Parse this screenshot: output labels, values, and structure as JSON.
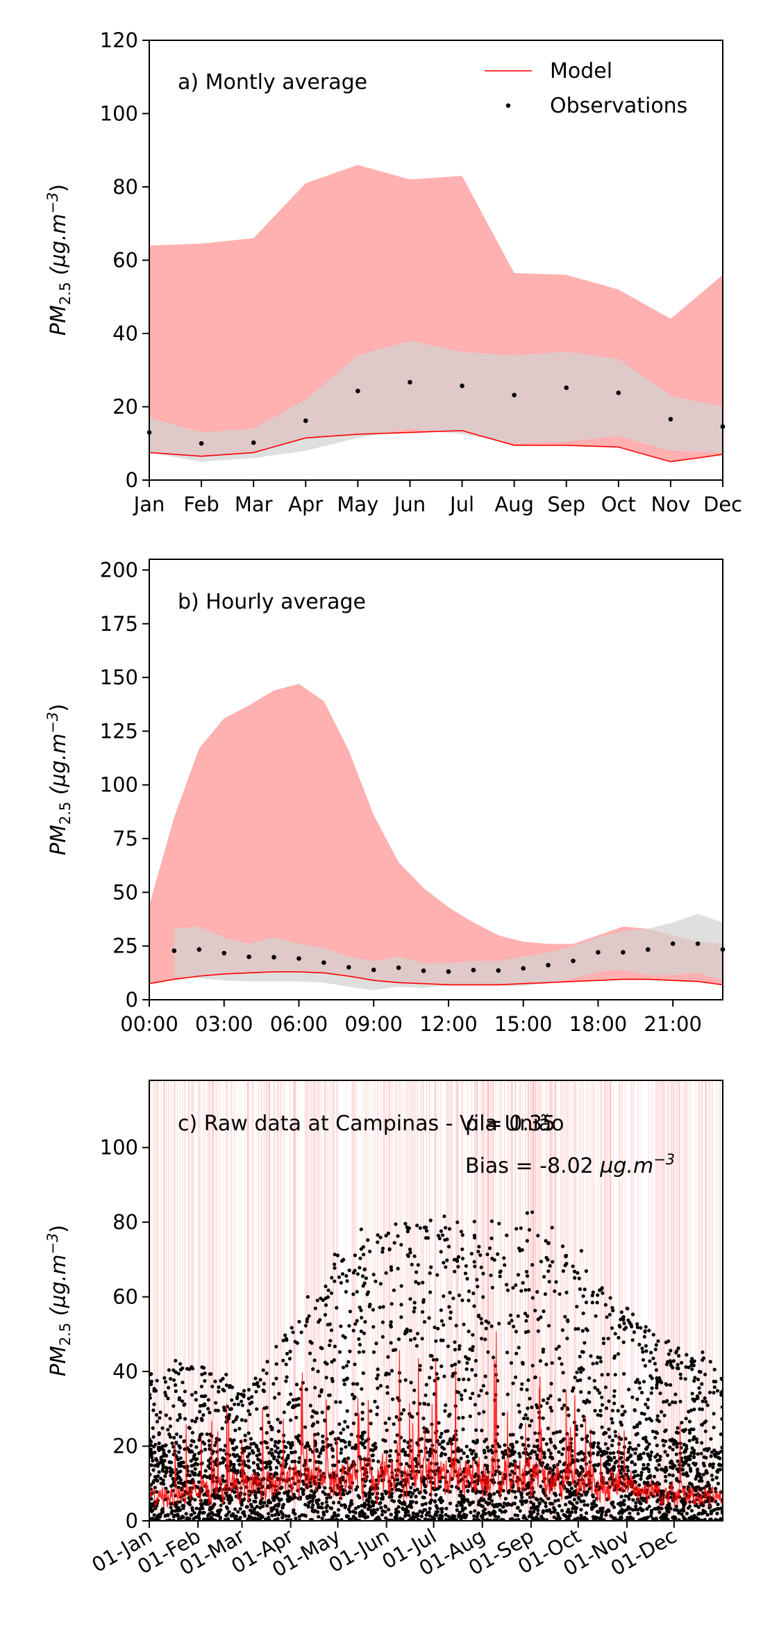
{
  "chart_data": [
    {
      "type": "area",
      "annotation": "a) Montly average",
      "ylabel": "PM2.5 (µg.m−3)",
      "ylabel_main": "PM",
      "ylabel_sub": "2.5",
      "ylabel_units_pre": "(µg.m",
      "ylabel_units_sup": "−3",
      "ylabel_units_post": ")",
      "ylim": [
        0,
        120
      ],
      "yticks": [
        0,
        20,
        40,
        60,
        80,
        100,
        120
      ],
      "categories": [
        "Jan",
        "Feb",
        "Mar",
        "Apr",
        "May",
        "Jun",
        "Jul",
        "Aug",
        "Sep",
        "Oct",
        "Nov",
        "Dec"
      ],
      "legend": {
        "position": "top-right",
        "model": "Model",
        "observations": "Observations"
      },
      "model_band_max": [
        64,
        64.5,
        66,
        81,
        86,
        82,
        83,
        56.5,
        56,
        52,
        44,
        56
      ],
      "model_band_min": [
        7.5,
        6.5,
        7.5,
        11.5,
        12.5,
        13,
        13.5,
        9.5,
        9.5,
        9,
        5,
        7
      ],
      "model_mean": [
        7.5,
        6.5,
        7.5,
        11.5,
        12.5,
        13,
        13.5,
        9.5,
        9.5,
        9,
        5,
        7
      ],
      "obs_band_max": [
        17,
        13,
        14,
        22,
        34,
        38,
        35,
        34,
        35,
        33,
        23,
        20
      ],
      "obs_band_min": [
        7.5,
        5,
        6,
        8,
        11.5,
        14,
        12.5,
        10,
        10.5,
        12,
        8,
        7.5
      ],
      "observations": [
        13,
        10,
        10.2,
        16.2,
        24.3,
        26.7,
        25.7,
        23.2,
        25.2,
        23.8,
        16.6,
        14.6
      ],
      "grid": false
    },
    {
      "type": "area",
      "annotation": "b) Hourly average",
      "ylabel": "PM2.5 (µg.m−3)",
      "ylim": [
        0,
        205
      ],
      "yticks": [
        0,
        25,
        50,
        75,
        100,
        125,
        150,
        175,
        200
      ],
      "xlim": [
        0,
        23
      ],
      "xtick_values": [
        0,
        3,
        6,
        9,
        12,
        15,
        18,
        21
      ],
      "xtick_labels": [
        "00:00",
        "03:00",
        "06:00",
        "09:00",
        "12:00",
        "15:00",
        "18:00",
        "21:00"
      ],
      "hours": [
        0,
        1,
        2,
        3,
        4,
        5,
        6,
        7,
        8,
        9,
        10,
        11,
        12,
        13,
        14,
        15,
        16,
        17,
        18,
        19,
        20,
        21,
        22,
        23
      ],
      "model_band_max": [
        44,
        85,
        117,
        131,
        137,
        144,
        147,
        139,
        116,
        86,
        64,
        52,
        43,
        36,
        30,
        27,
        26,
        26,
        30,
        34,
        33,
        30,
        27,
        26
      ],
      "model_mean": [
        7.5,
        9.5,
        11,
        12,
        12.5,
        13,
        13,
        12.5,
        11,
        9,
        8,
        7.5,
        7,
        7,
        7,
        7.5,
        8,
        8.5,
        9,
        9.5,
        9.5,
        9,
        8.5,
        7
      ],
      "obs_band_max": [
        null,
        33,
        34,
        29,
        26,
        29,
        26,
        24,
        20,
        18,
        20,
        17,
        17,
        18,
        18,
        20,
        22,
        25,
        29,
        32,
        33,
        36,
        40,
        36
      ],
      "obs_band_min": [
        null,
        11,
        10,
        9,
        8.5,
        8.5,
        8.5,
        8,
        6,
        4.5,
        6,
        5.5,
        6.5,
        6.5,
        6.5,
        6.5,
        7.5,
        10,
        13,
        14,
        11.5,
        11.5,
        12.5,
        9
      ],
      "observations": [
        null,
        22.8,
        23.4,
        21.7,
        20,
        19.8,
        19.2,
        17.3,
        15.1,
        13.9,
        14.9,
        13.5,
        13.1,
        13.8,
        13.6,
        14.6,
        16.1,
        18.1,
        22.1,
        22.1,
        23.4,
        26.1,
        26.1,
        23.4
      ],
      "grid": false
    },
    {
      "type": "line",
      "annotation": "c) Raw data at Campinas - Vila União",
      "stat_rho": "ρ = 0.35",
      "stat_bias_prefix": "Bias = -8.02 ",
      "stat_bias_units": "µg.m",
      "stat_bias_sup": "−3",
      "ylabel": "PM2.5 (µg.m−3)",
      "ylim": [
        0,
        118
      ],
      "yticks": [
        0,
        20,
        40,
        60,
        80,
        100
      ],
      "xtick_labels": [
        "01-Jan",
        "01-Feb",
        "01-Mar",
        "01-Apr",
        "01-May",
        "01-Jun",
        "01-Jul",
        "01-Aug",
        "01-Sep",
        "01-Oct",
        "01-Nov",
        "01-Dec"
      ],
      "xtick_day_of_year": [
        0,
        31,
        59,
        90,
        120,
        151,
        181,
        212,
        243,
        273,
        304,
        334
      ],
      "days_in_year": 365,
      "series": [
        {
          "name": "Model"
        },
        {
          "name": "Observations"
        }
      ],
      "sampled_hourly_obs_envelope": {
        "day_of_year": [
          0,
          31,
          59,
          90,
          120,
          151,
          181,
          212,
          243,
          273,
          304,
          334,
          364
        ],
        "typical_max": [
          38,
          44,
          34,
          50,
          70,
          80,
          80,
          76,
          80,
          70,
          55,
          45,
          42
        ]
      },
      "grid": false
    }
  ],
  "colors": {
    "model_band": "#ffb0b0",
    "obs_band": "#d3d3d3",
    "overlap": "#d6a6a6",
    "model_line": "#ff0000",
    "observations": "#000000"
  }
}
